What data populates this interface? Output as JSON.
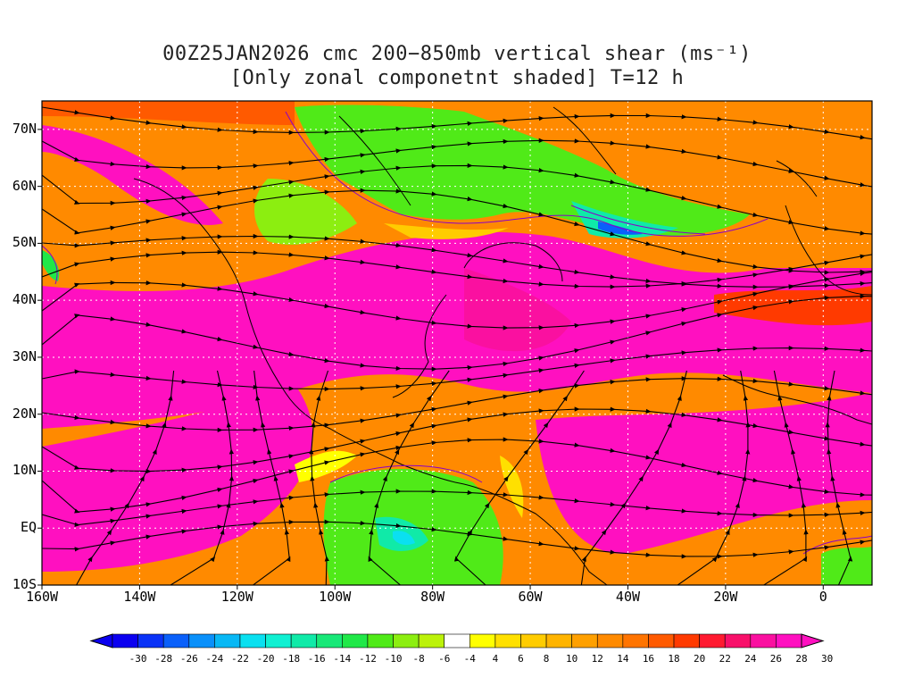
{
  "title": {
    "line1": "00Z25JAN2026 cmc 200−850mb vertical shear (ms⁻¹)",
    "line2": "[Only zonal componetnt shaded] T=12 h"
  },
  "map": {
    "lon_range": [
      -160,
      10
    ],
    "lat_range": [
      -10,
      75
    ],
    "lon_ticks": [
      {
        "value": -160,
        "label": "160W"
      },
      {
        "value": -140,
        "label": "140W"
      },
      {
        "value": -120,
        "label": "120W"
      },
      {
        "value": -100,
        "label": "100W"
      },
      {
        "value": -80,
        "label": "80W"
      },
      {
        "value": -60,
        "label": "60W"
      },
      {
        "value": -40,
        "label": "40W"
      },
      {
        "value": -20,
        "label": "20W"
      },
      {
        "value": 0,
        "label": "0"
      }
    ],
    "lat_ticks": [
      {
        "value": 70,
        "label": "70N"
      },
      {
        "value": 60,
        "label": "60N"
      },
      {
        "value": 50,
        "label": "50N"
      },
      {
        "value": 40,
        "label": "40N"
      },
      {
        "value": 30,
        "label": "30N"
      },
      {
        "value": 20,
        "label": "20N"
      },
      {
        "value": 10,
        "label": "10N"
      },
      {
        "value": 0,
        "label": "EQ"
      },
      {
        "value": -10,
        "label": "10S"
      }
    ],
    "grid": "dotted white"
  },
  "colorbar": {
    "labels": [
      "-30",
      "-28",
      "-26",
      "-24",
      "-22",
      "-20",
      "-18",
      "-16",
      "-14",
      "-12",
      "-10",
      "-8",
      "-6",
      "-4",
      "4",
      "6",
      "8",
      "10",
      "12",
      "14",
      "16",
      "18",
      "20",
      "22",
      "24",
      "26",
      "28",
      "30"
    ],
    "colors": [
      "#0b00f0",
      "#0a32f7",
      "#0a60fa",
      "#0a90fa",
      "#08b8f5",
      "#0ae0f0",
      "#10f0d2",
      "#10eaa8",
      "#18e878",
      "#20e848",
      "#50ea18",
      "#8cee10",
      "#bcf20a",
      "#ffffff",
      "#ffff00",
      "#ffe000",
      "#ffcc00",
      "#ffb400",
      "#ffa000",
      "#ff8a00",
      "#ff7400",
      "#ff5a00",
      "#ff3a00",
      "#ff1a30",
      "#f8106a",
      "#fa10a0",
      "#ff10c0"
    ]
  }
}
